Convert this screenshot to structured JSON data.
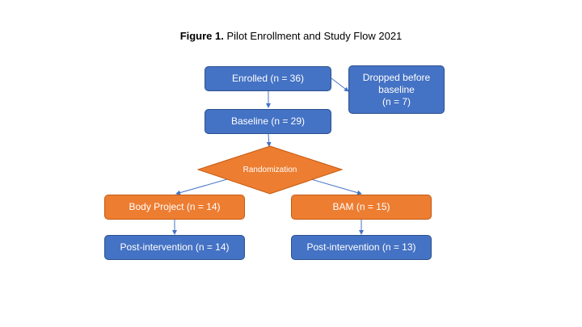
{
  "figure": {
    "label": "Figure 1.",
    "title": "Pilot Enrollment and Study Flow 2021"
  },
  "nodes": {
    "enrolled": "Enrolled (n = 36)",
    "dropped_line1": "Dropped before",
    "dropped_line2": "baseline",
    "dropped_line3": "(n = 7)",
    "baseline": "Baseline (n = 29)",
    "randomization": "Randomization",
    "body_project": "Body Project (n = 14)",
    "bam": "BAM (n = 15)",
    "post_left": "Post-intervention (n = 14)",
    "post_right": "Post-intervention (n = 13)"
  },
  "colors": {
    "blue_fill": "#4472c4",
    "orange_fill": "#ed7d31",
    "arrow": "#4472c4"
  }
}
